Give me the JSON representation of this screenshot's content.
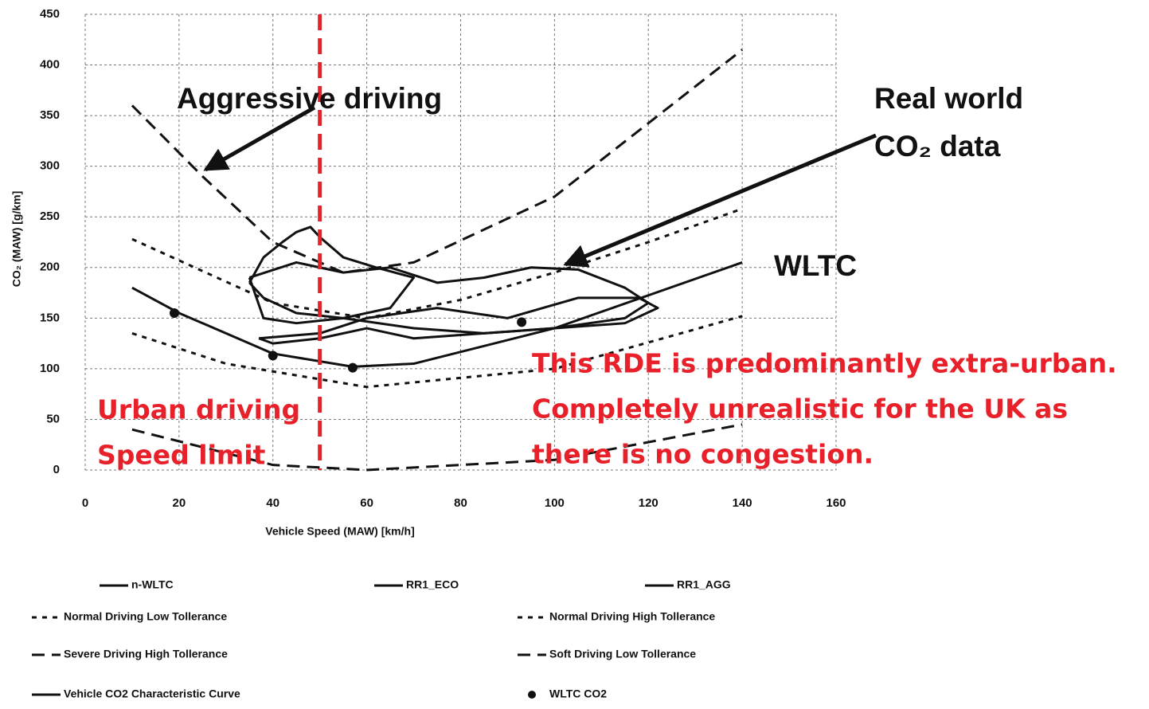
{
  "chart_data": {
    "type": "line",
    "xlabel": "Vehicle Speed (MAW) [km/h]",
    "ylabel": "CO₂ (MAW) [g/km]",
    "xlim": [
      0,
      160
    ],
    "xticks": [
      0,
      20,
      40,
      60,
      80,
      100,
      120,
      140,
      160
    ],
    "ylim": [
      0,
      450
    ],
    "yticks": [
      0,
      50,
      100,
      150,
      200,
      250,
      300,
      350,
      400,
      450
    ],
    "grid": true,
    "speed_limit_x": 50,
    "speed_limit_color": "#e8202a",
    "annotations": {
      "aggressive": "Aggressive driving",
      "real_world_1": "Real world",
      "real_world_2": "CO₂ data",
      "wltc": "WLTC",
      "urban_1": "Urban driving",
      "urban_2": "Speed limit",
      "rde_1": "This RDE is predominantly extra-urban.",
      "rde_2": "Completely unrealistic for the UK as",
      "rde_3": "there is no congestion."
    },
    "series": [
      {
        "name": "n-WLTC",
        "color": "#111111",
        "dash": "solid",
        "x": [
          37,
          50,
          60,
          75,
          90,
          105,
          118,
          122,
          115,
          100,
          85,
          70,
          60,
          50,
          40,
          37
        ],
        "values": [
          130,
          135,
          150,
          160,
          150,
          170,
          170,
          160,
          145,
          140,
          135,
          130,
          140,
          130,
          125,
          130
        ]
      },
      {
        "name": "RR1_ECO",
        "color": "#111111",
        "dash": "solid",
        "x": [
          35,
          45,
          55,
          65,
          75,
          85,
          95,
          105,
          115,
          120,
          115,
          100,
          85,
          70,
          55,
          45,
          38,
          35
        ],
        "values": [
          190,
          205,
          195,
          200,
          185,
          190,
          200,
          198,
          180,
          165,
          150,
          140,
          135,
          140,
          150,
          145,
          150,
          190
        ]
      },
      {
        "name": "RR1_AGG",
        "color": "#111111",
        "dash": "solid",
        "x": [
          35,
          38,
          42,
          45,
          48,
          50,
          55,
          62,
          70,
          65,
          55,
          45,
          38,
          35
        ],
        "values": [
          185,
          210,
          225,
          235,
          240,
          230,
          210,
          200,
          190,
          160,
          150,
          155,
          170,
          185
        ]
      },
      {
        "name": "Normal Driving Low Tollerance",
        "color": "#111111",
        "dash": "short",
        "x": [
          10,
          30,
          60,
          100,
          140
        ],
        "values": [
          135,
          105,
          82,
          100,
          152
        ]
      },
      {
        "name": "Normal Driving High Tollerance",
        "color": "#111111",
        "dash": "short",
        "x": [
          10,
          40,
          60,
          80,
          100,
          120,
          140
        ],
        "values": [
          228,
          165,
          150,
          168,
          195,
          225,
          258
        ]
      },
      {
        "name": "Severe Driving High Tollerance",
        "color": "#111111",
        "dash": "long",
        "x": [
          10,
          25,
          40,
          55,
          70,
          100,
          140
        ],
        "values": [
          360,
          290,
          225,
          195,
          205,
          270,
          415
        ]
      },
      {
        "name": "Soft Driving Low Tollerance",
        "color": "#111111",
        "dash": "long",
        "x": [
          10,
          40,
          60,
          100,
          140
        ],
        "values": [
          40,
          5,
          0,
          10,
          45
        ]
      },
      {
        "name": "Vehicle CO2 Characteristic Curve",
        "color": "#111111",
        "dash": "solid",
        "x": [
          10,
          20,
          40,
          57,
          70,
          100,
          140
        ],
        "values": [
          180,
          155,
          115,
          102,
          105,
          140,
          205
        ]
      },
      {
        "name": "WLTC CO2",
        "color": "#111111",
        "dash": "none",
        "marker": "circle",
        "x": [
          19,
          40,
          57,
          93
        ],
        "values": [
          155,
          113,
          101,
          146
        ]
      }
    ]
  }
}
